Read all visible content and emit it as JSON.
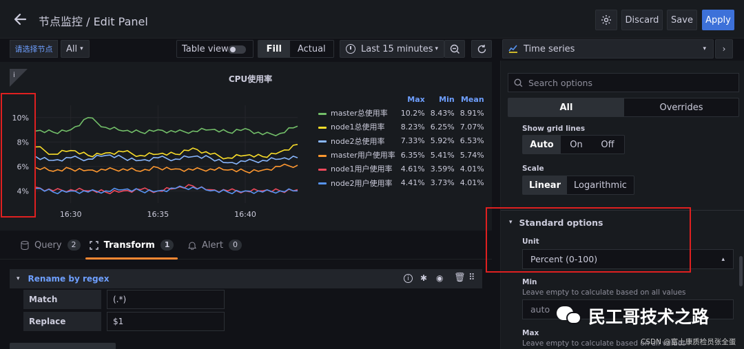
{
  "header": {
    "title": "节点监控 / Edit Panel",
    "discard_label": "Discard",
    "save_label": "Save",
    "apply_label": "Apply"
  },
  "toolbar": {
    "variable_label": "请选择节点",
    "variable_value": "All",
    "table_view_label": "Table view",
    "fill_label": "Fill",
    "actual_label": "Actual",
    "time_range": "Last 15 minutes",
    "visualization": "Time series"
  },
  "panel": {
    "info_icon": "i",
    "title": "CPU使用率",
    "y_ticks": [
      "10%",
      "8%",
      "6%",
      "4%"
    ],
    "x_ticks": [
      "16:30",
      "16:35",
      "16:40"
    ],
    "legend_headers": [
      "Max",
      "Min",
      "Mean"
    ],
    "legend": [
      {
        "name": "master总使用率",
        "max": "10.2%",
        "min": "8.43%",
        "mean": "8.91%"
      },
      {
        "name": "node1总使用率",
        "max": "8.23%",
        "min": "6.25%",
        "mean": "7.07%"
      },
      {
        "name": "node2总使用率",
        "max": "7.33%",
        "min": "5.92%",
        "mean": "6.53%"
      },
      {
        "name": "master用户使用率",
        "max": "6.35%",
        "min": "5.41%",
        "mean": "5.74%"
      },
      {
        "name": "node1用户使用率",
        "max": "4.61%",
        "min": "3.59%",
        "mean": "4.01%"
      },
      {
        "name": "node2用户使用率",
        "max": "4.41%",
        "min": "3.73%",
        "mean": "4.01%"
      }
    ]
  },
  "colors": {
    "green": "#73bf69",
    "yellow": "#fade2a",
    "blue": "#8ab8ff",
    "orange": "#ff9830",
    "red": "#f2495c",
    "blue2": "#5794f2",
    "accent": "#3d71d9",
    "link": "#6e9fff"
  },
  "chart_data": {
    "type": "line",
    "x": [
      "16:28",
      "16:29",
      "16:30",
      "16:31",
      "16:32",
      "16:33",
      "16:34",
      "16:35",
      "16:36",
      "16:37",
      "16:38",
      "16:39",
      "16:40",
      "16:41",
      "16:42",
      "16:43"
    ],
    "ylim": [
      3,
      11
    ],
    "series": [
      {
        "name": "master总使用率",
        "values": [
          8.9,
          8.8,
          9.0,
          10.0,
          9.2,
          8.9,
          8.8,
          9.0,
          8.8,
          8.9,
          9.0,
          8.8,
          9.1,
          8.6,
          8.7,
          9.3
        ]
      },
      {
        "name": "node1总使用率",
        "values": [
          7.6,
          7.0,
          7.3,
          6.9,
          7.1,
          7.2,
          6.9,
          7.0,
          7.0,
          7.5,
          7.0,
          6.7,
          6.9,
          6.8,
          7.2,
          7.8
        ]
      },
      {
        "name": "node2总使用率",
        "values": [
          6.8,
          6.5,
          6.7,
          6.6,
          6.9,
          6.7,
          6.5,
          6.7,
          6.6,
          6.8,
          6.7,
          6.3,
          6.4,
          6.5,
          6.6,
          6.7
        ]
      },
      {
        "name": "master用户使用率",
        "values": [
          5.9,
          5.6,
          5.8,
          5.7,
          5.7,
          5.8,
          5.6,
          5.9,
          5.8,
          5.7,
          5.8,
          5.7,
          5.6,
          5.7,
          6.0,
          6.1
        ]
      },
      {
        "name": "node1用户使用率",
        "values": [
          4.3,
          4.0,
          4.1,
          4.0,
          3.9,
          4.0,
          4.1,
          4.0,
          4.2,
          4.4,
          4.1,
          4.0,
          4.0,
          4.0,
          4.0,
          4.1
        ]
      },
      {
        "name": "node2用户使用率",
        "values": [
          4.2,
          3.9,
          4.0,
          3.9,
          4.0,
          4.1,
          4.0,
          4.0,
          4.2,
          4.3,
          4.0,
          3.9,
          4.0,
          3.9,
          4.0,
          4.0
        ]
      }
    ]
  },
  "tabs": [
    {
      "label": "Query",
      "count": "2"
    },
    {
      "label": "Transform",
      "count": "1"
    },
    {
      "label": "Alert",
      "count": "0"
    }
  ],
  "transform": {
    "title": "Rename by regex",
    "match_label": "Match",
    "match_value": "(.*)",
    "replace_label": "Replace",
    "replace_value": "$1"
  },
  "options": {
    "search_placeholder": "Search options",
    "tab_all": "All",
    "tab_overrides": "Overrides",
    "show_grid_lines_label": "Show grid lines",
    "grid_options": [
      "Auto",
      "On",
      "Off"
    ],
    "scale_label": "Scale",
    "scale_options": [
      "Linear",
      "Logarithmic"
    ],
    "standard_options_title": "Standard options",
    "unit_label": "Unit",
    "unit_value": "Percent (0-100)",
    "min_label": "Min",
    "min_desc": "Leave empty to calculate based on all values",
    "min_value": "auto",
    "max_label": "Max",
    "max_desc": "Leave empty to calculate based on all values"
  },
  "watermark": {
    "wechat": "民工哥技术之路",
    "csdn": "CSDN @富士康质检员张全蛋"
  }
}
